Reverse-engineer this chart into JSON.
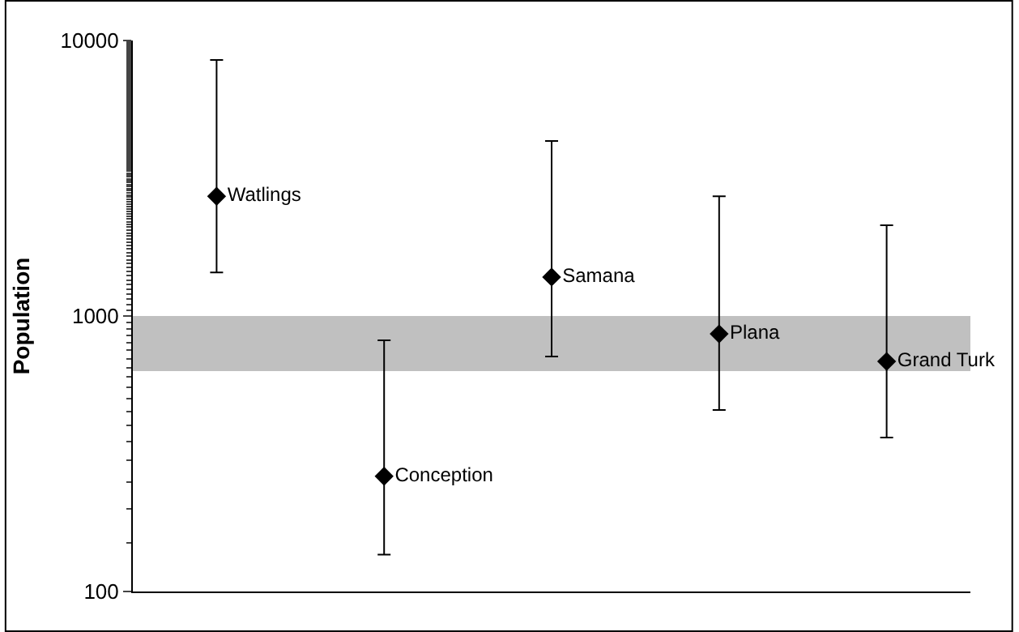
{
  "chart_data": {
    "type": "scatter",
    "ylabel": "Population",
    "categories": [
      null,
      null,
      null,
      null,
      null
    ],
    "series": [
      {
        "color": "#000000",
        "values": [
          2720,
          262,
          1385,
          861,
          684
        ],
        "errors": [
          [
            1440,
            8500
          ],
          [
            136,
            816
          ],
          [
            713,
            4320
          ],
          [
            456,
            2720
          ],
          [
            362,
            2135
          ]
        ],
        "value_labels": [
          "Watlings",
          "Conception",
          "Samana",
          "Plana",
          "Grand Turk"
        ]
      }
    ],
    "log": "y",
    "ylim": [
      100,
      10000
    ],
    "yticks": [
      100,
      1000,
      10000
    ],
    "bands": [
      {
        "axis": "y",
        "from": 631,
        "to": 1000,
        "color": "#c0c0c0"
      }
    ],
    "marker": "diamond",
    "grid": false,
    "legend": false
  }
}
